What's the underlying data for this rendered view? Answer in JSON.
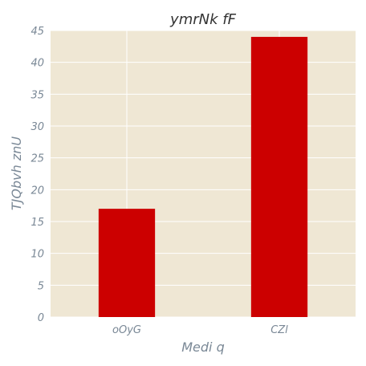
{
  "chart_data": {
    "type": "bar",
    "title": "ymrNk fF",
    "xlabel": "Medi q",
    "ylabel": "TJQbvh znU",
    "categories": [
      "oOyG",
      "CZl"
    ],
    "values": [
      17,
      44
    ],
    "ylim": [
      0,
      45
    ],
    "yticks": [
      0,
      5,
      10,
      15,
      20,
      25,
      30,
      35,
      40,
      45
    ],
    "grid": true,
    "colors": {
      "bar": "#cc0000",
      "plot_background": "#efe7d4",
      "grid": "#ffffff"
    }
  }
}
